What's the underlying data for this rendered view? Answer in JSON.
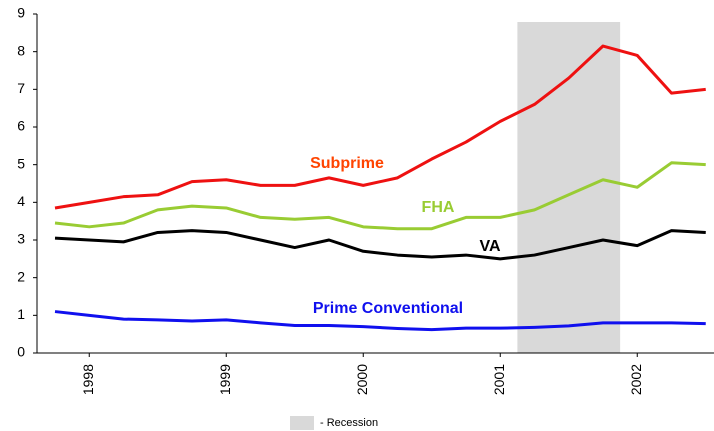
{
  "chart_data": {
    "type": "line",
    "categories": [
      null,
      "1998",
      null,
      null,
      null,
      "1999",
      null,
      null,
      null,
      "2000",
      null,
      null,
      null,
      "2001",
      null,
      null,
      null,
      "2002",
      null,
      null
    ],
    "series": [
      {
        "name": "Subprime",
        "color": "#ee1111",
        "values": [
          3.85,
          4.0,
          4.15,
          4.2,
          4.55,
          4.6,
          4.45,
          4.45,
          4.65,
          4.45,
          4.65,
          5.15,
          5.6,
          6.15,
          6.6,
          7.3,
          8.15,
          7.9,
          6.9,
          7.0
        ]
      },
      {
        "name": "FHA",
        "color": "#99cc33",
        "values": [
          3.45,
          3.35,
          3.45,
          3.8,
          3.9,
          3.85,
          3.6,
          3.55,
          3.6,
          3.35,
          3.3,
          3.3,
          3.6,
          3.6,
          3.8,
          4.2,
          4.6,
          4.4,
          5.05,
          5.0
        ]
      },
      {
        "name": "VA",
        "color": "#000000",
        "values": [
          3.05,
          3.0,
          2.95,
          3.2,
          3.25,
          3.2,
          3.0,
          2.8,
          3.0,
          2.7,
          2.6,
          2.55,
          2.6,
          2.5,
          2.6,
          2.8,
          3.0,
          2.85,
          3.25,
          3.2
        ]
      },
      {
        "name": "Prime Conventional",
        "color": "#1010ee",
        "values": [
          1.1,
          1.0,
          0.9,
          0.88,
          0.85,
          0.88,
          0.8,
          0.73,
          0.73,
          0.7,
          0.65,
          0.62,
          0.66,
          0.66,
          0.68,
          0.72,
          0.8,
          0.8,
          0.8,
          0.78
        ]
      }
    ],
    "recession": {
      "label": "- Recession",
      "start": 13.5,
      "end": 16.5,
      "color": "#d9d9d9"
    },
    "ylim": [
      0,
      9
    ],
    "yticks": [
      0,
      1,
      2,
      3,
      4,
      5,
      6,
      7,
      8,
      9
    ],
    "grid": false
  }
}
